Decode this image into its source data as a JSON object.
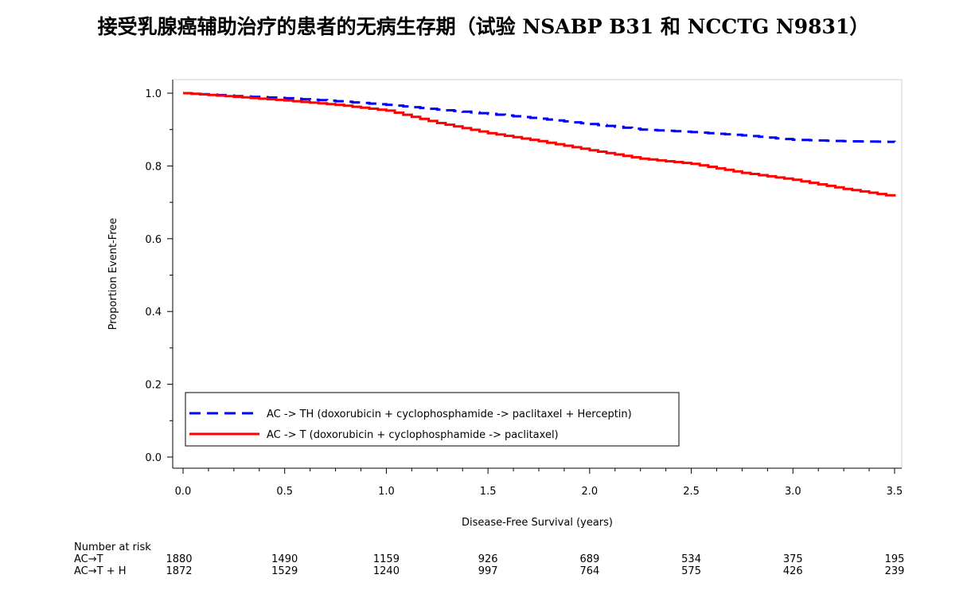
{
  "title": "接受乳腺癌辅助治疗的患者的无病生存期（试验 NSABP B31 和 NCCTG N9831）",
  "chart_data": {
    "type": "line",
    "title": "接受乳腺癌辅助治疗的患者的无病生存期（试验 NSABP B31 和 NCCTG N9831）",
    "xlabel": "Disease-Free Survival (years)",
    "ylabel": "Proportion Event-Free",
    "xlim": [
      0,
      3.5
    ],
    "ylim": [
      0,
      1.0
    ],
    "x_ticks": [
      "0.0",
      "0.5",
      "1.0",
      "1.5",
      "2.0",
      "2.5",
      "3.0",
      "3.5"
    ],
    "y_ticks": [
      "0.0",
      "0.2",
      "0.4",
      "0.6",
      "0.8",
      "1.0"
    ],
    "grid": false,
    "legend_position": "bottom-left",
    "series": [
      {
        "name": "AC -> TH (doxorubicin + cyclophosphamide -> paclitaxel + Herceptin)",
        "color": "#0000ff",
        "style": "dashed",
        "x": [
          0.0,
          0.25,
          0.5,
          0.75,
          1.0,
          1.25,
          1.5,
          1.75,
          2.0,
          2.25,
          2.5,
          2.75,
          3.0,
          3.25,
          3.5
        ],
        "y": [
          1.0,
          0.992,
          0.986,
          0.978,
          0.968,
          0.955,
          0.943,
          0.93,
          0.915,
          0.9,
          0.893,
          0.884,
          0.872,
          0.868,
          0.866
        ]
      },
      {
        "name": "AC -> T (doxorubicin + cyclophosphamide -> paclitaxel)",
        "color": "#ff0000",
        "style": "solid",
        "x": [
          0.0,
          0.25,
          0.5,
          0.75,
          1.0,
          1.25,
          1.5,
          1.75,
          2.0,
          2.25,
          2.5,
          2.75,
          3.0,
          3.25,
          3.5
        ],
        "y": [
          1.0,
          0.99,
          0.98,
          0.968,
          0.952,
          0.918,
          0.89,
          0.868,
          0.843,
          0.82,
          0.806,
          0.781,
          0.762,
          0.737,
          0.716
        ]
      }
    ],
    "risk_table": {
      "header": "Number at risk",
      "rows": [
        {
          "label": "AC→T",
          "values": [
            "1880",
            "1490",
            "1159",
            "926",
            "689",
            "534",
            "375",
            "195"
          ]
        },
        {
          "label": "AC→T + H",
          "values": [
            "1872",
            "1529",
            "1240",
            "997",
            "764",
            "575",
            "426",
            "239"
          ]
        }
      ]
    }
  }
}
